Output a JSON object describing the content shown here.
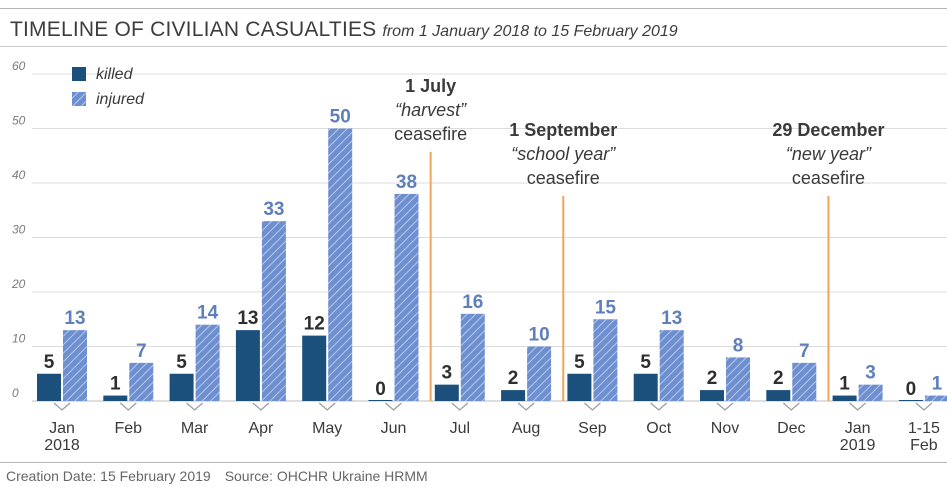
{
  "header": {
    "title": "TIMELINE OF CIVILIAN CASUALTIES",
    "subtitle": "from 1 January 2018 to 15 February 2019"
  },
  "footer": {
    "creation": "Creation Date: 15 February 2019",
    "source": "Source: OHCHR Ukraine HRMM"
  },
  "colors": {
    "killed": "#1b4f7c",
    "injured": "#6d8fcf",
    "ceasefire_line": "#f0a55a",
    "value_killed": "#2f2f2f",
    "value_injured": "#5f7fba"
  },
  "chart_data": {
    "type": "bar",
    "categories": [
      [
        "Jan",
        "2018"
      ],
      [
        "Feb"
      ],
      [
        "Mar"
      ],
      [
        "Apr"
      ],
      [
        "May"
      ],
      [
        "Jun"
      ],
      [
        "Jul"
      ],
      [
        "Aug"
      ],
      [
        "Sep"
      ],
      [
        "Oct"
      ],
      [
        "Nov"
      ],
      [
        "Dec"
      ],
      [
        "Jan",
        "2019"
      ],
      [
        "1-15",
        "Feb"
      ]
    ],
    "series": [
      {
        "name": "killed",
        "values": [
          5,
          1,
          5,
          13,
          12,
          0,
          3,
          2,
          5,
          5,
          2,
          2,
          1,
          0
        ]
      },
      {
        "name": "injured",
        "values": [
          13,
          7,
          14,
          33,
          50,
          38,
          16,
          10,
          15,
          13,
          8,
          7,
          3,
          1
        ]
      }
    ],
    "y_ticks": [
      0,
      10,
      20,
      30,
      40,
      50,
      60
    ],
    "ylim": [
      0,
      60
    ],
    "grid": true,
    "legend": {
      "position": "top-left",
      "items": [
        "killed",
        "injured"
      ]
    },
    "annotations": [
      {
        "after_category": "Jun",
        "lines": [
          "1 July",
          "“harvest”",
          "ceasefire"
        ]
      },
      {
        "after_category": "Aug",
        "lines": [
          "1 September",
          "“school year”",
          "ceasefire"
        ]
      },
      {
        "after_category": "Dec",
        "lines": [
          "29 December",
          "“new year”",
          "ceasefire"
        ]
      }
    ]
  }
}
